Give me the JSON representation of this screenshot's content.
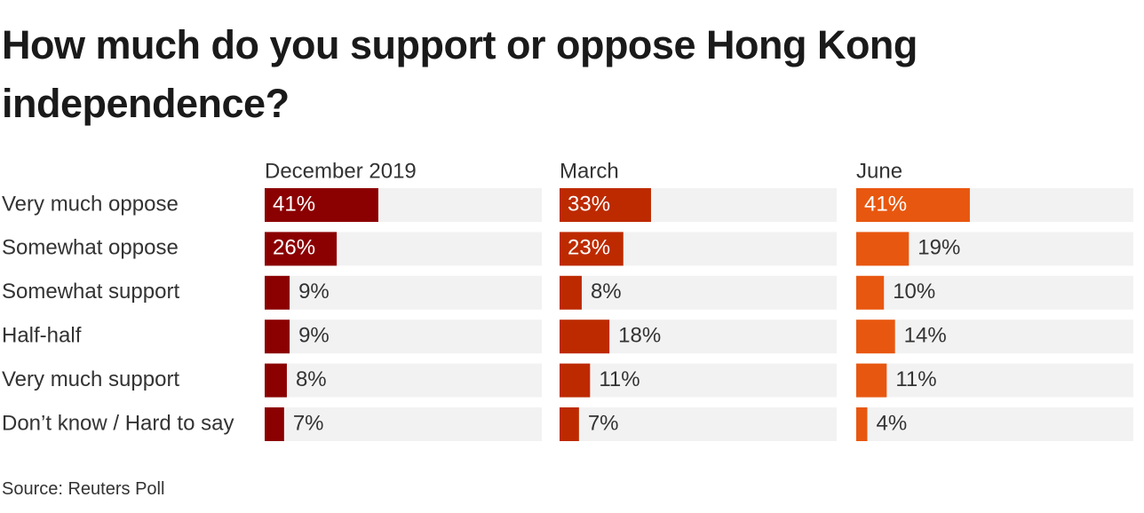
{
  "title": "How much do you support or oppose Hong Kong independence?",
  "source": "Source: Reuters Poll",
  "chart_data": {
    "type": "bar",
    "orientation": "horizontal",
    "layout": "small-multiples",
    "title": "How much do you support or oppose Hong Kong independence?",
    "categories": [
      "Very much oppose",
      "Somewhat oppose",
      "Somewhat support",
      "Half-half",
      "Very much support",
      "Don’t know / Hard to say"
    ],
    "xlim": [
      0,
      100
    ],
    "unit": "%",
    "series": [
      {
        "name": "December 2019",
        "color": "#8b0000",
        "values": [
          41,
          26,
          9,
          9,
          8,
          7
        ]
      },
      {
        "name": "March",
        "color": "#bd2a00",
        "values": [
          33,
          23,
          8,
          18,
          11,
          7
        ]
      },
      {
        "name": "June",
        "color": "#e8570f",
        "values": [
          41,
          19,
          10,
          14,
          11,
          4
        ]
      }
    ],
    "track_color": "#f2f2f2"
  }
}
